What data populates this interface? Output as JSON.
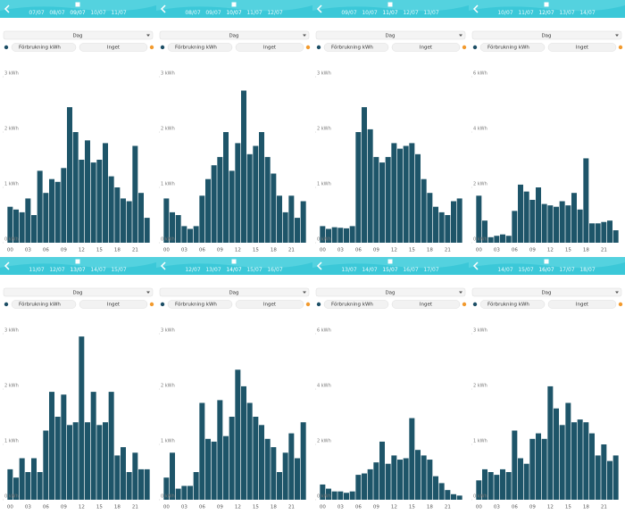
{
  "panels": [
    {
      "dates": [
        "07/07",
        "08/07",
        "09/07",
        "10/07",
        "11/07"
      ],
      "period": "Dag",
      "series_button": {
        "label": "Förbrukning kWh",
        "color": "#1d4f66"
      },
      "compare_button": {
        "label": "Inget",
        "color": "#f29a2e"
      },
      "chart_data": {
        "type": "bar",
        "color": "#1e5569",
        "categories": [
          "00",
          null,
          null,
          "03",
          null,
          null,
          "06",
          null,
          null,
          "09",
          null,
          null,
          "12",
          null,
          null,
          "15",
          null,
          null,
          "18",
          null,
          null,
          "21",
          null,
          null
        ],
        "values": [
          0.65,
          0.6,
          0.55,
          0.8,
          0.5,
          1.3,
          0.9,
          1.15,
          1.1,
          1.35,
          2.45,
          2.0,
          1.5,
          1.85,
          1.45,
          1.5,
          1.8,
          1.2,
          1.0,
          0.8,
          0.75,
          1.75,
          0.9,
          0.45
        ],
        "ylim": [
          0,
          3
        ],
        "yticks": [
          {
            "value": 0,
            "label": "0 kWh"
          },
          {
            "value": 1,
            "label": "1 kWh"
          },
          {
            "value": 2,
            "label": "2 kWh"
          },
          {
            "value": 3,
            "label": "3 kWh"
          }
        ]
      }
    },
    {
      "dates": [
        "08/07",
        "09/07",
        "10/07",
        "11/07",
        "12/07"
      ],
      "period": "Dag",
      "series_button": {
        "label": "Förbrukning kWh",
        "color": "#1d4f66"
      },
      "compare_button": {
        "label": "Inget",
        "color": "#f29a2e"
      },
      "chart_data": {
        "type": "bar",
        "color": "#1e5569",
        "categories": [
          "00",
          null,
          null,
          "03",
          null,
          null,
          "06",
          null,
          null,
          "09",
          null,
          null,
          "12",
          null,
          null,
          "15",
          null,
          null,
          "18",
          null,
          null,
          "21",
          null,
          null
        ],
        "values": [
          0.8,
          0.55,
          0.5,
          0.3,
          0.25,
          0.3,
          0.85,
          1.15,
          1.4,
          1.55,
          2.0,
          1.3,
          1.8,
          2.75,
          1.6,
          1.75,
          2.0,
          1.55,
          1.25,
          0.85,
          0.55,
          0.85,
          0.45,
          0.75
        ],
        "ylim": [
          0,
          3
        ],
        "yticks": [
          {
            "value": 0,
            "label": "0 kWh"
          },
          {
            "value": 1,
            "label": "1 kWh"
          },
          {
            "value": 2,
            "label": "2 kWh"
          },
          {
            "value": 3,
            "label": "3 kWh"
          }
        ]
      }
    },
    {
      "dates": [
        "09/07",
        "10/07",
        "11/07",
        "12/07",
        "13/07"
      ],
      "period": "Dag",
      "series_button": {
        "label": "Förbrukning kWh",
        "color": "#1d4f66"
      },
      "compare_button": {
        "label": "Inget",
        "color": "#f29a2e"
      },
      "chart_data": {
        "type": "bar",
        "color": "#1e5569",
        "categories": [
          "00",
          null,
          null,
          "03",
          null,
          null,
          "06",
          null,
          null,
          "09",
          null,
          null,
          "12",
          null,
          null,
          "15",
          null,
          null,
          "18",
          null,
          null,
          "21",
          null,
          null
        ],
        "values": [
          0.3,
          0.25,
          0.28,
          0.27,
          0.26,
          0.3,
          2.0,
          2.45,
          2.05,
          1.55,
          1.45,
          1.55,
          1.8,
          1.7,
          1.75,
          1.8,
          1.6,
          1.15,
          0.9,
          0.65,
          0.55,
          0.5,
          0.75,
          0.8
        ],
        "ylim": [
          0,
          3
        ],
        "yticks": [
          {
            "value": 0,
            "label": "0 kWh"
          },
          {
            "value": 1,
            "label": "1 kWh"
          },
          {
            "value": 2,
            "label": "2 kWh"
          },
          {
            "value": 3,
            "label": "3 kWh"
          }
        ]
      }
    },
    {
      "dates": [
        "10/07",
        "11/07",
        "12/07",
        "13/07",
        "14/07"
      ],
      "period": "Dag",
      "series_button": {
        "label": "Förbrukning kWh",
        "color": "#1d4f66"
      },
      "compare_button": {
        "label": "Inget",
        "color": "#f29a2e"
      },
      "chart_data": {
        "type": "bar",
        "color": "#1e5569",
        "categories": [
          "00",
          null,
          null,
          "03",
          null,
          null,
          "06",
          null,
          null,
          "09",
          null,
          null,
          "12",
          null,
          null,
          "15",
          null,
          null,
          "18",
          null,
          null,
          "21",
          null,
          null
        ],
        "values": [
          1.7,
          0.8,
          0.2,
          0.25,
          0.3,
          0.25,
          1.15,
          2.1,
          1.85,
          1.55,
          2.0,
          1.4,
          1.35,
          1.3,
          1.5,
          1.35,
          1.8,
          1.2,
          3.05,
          0.7,
          0.7,
          0.75,
          0.8,
          0.45
        ],
        "ylim": [
          0,
          6
        ],
        "yticks": [
          {
            "value": 0,
            "label": "0 kWh"
          },
          {
            "value": 2,
            "label": "2 kWh"
          },
          {
            "value": 4,
            "label": "4 kWh"
          },
          {
            "value": 6,
            "label": "6 kWh"
          }
        ]
      }
    },
    {
      "dates": [
        "11/07",
        "12/07",
        "13/07",
        "14/07",
        "15/07"
      ],
      "period": "Dag",
      "series_button": {
        "label": "Förbrukning kWh",
        "color": "#1d4f66"
      },
      "compare_button": {
        "label": "Inget",
        "color": "#f29a2e"
      },
      "chart_data": {
        "type": "bar",
        "color": "#1e5569",
        "categories": [
          "00",
          null,
          null,
          "03",
          null,
          null,
          "06",
          null,
          null,
          "09",
          null,
          null,
          "12",
          null,
          null,
          "15",
          null,
          null,
          "18",
          null,
          null,
          "21",
          null,
          null
        ],
        "values": [
          0.55,
          0.4,
          0.75,
          0.5,
          0.75,
          0.5,
          1.25,
          1.95,
          1.5,
          1.9,
          1.35,
          1.4,
          2.95,
          1.4,
          1.95,
          1.35,
          1.4,
          1.95,
          0.8,
          0.95,
          0.5,
          0.85,
          0.55,
          0.55
        ],
        "ylim": [
          0,
          3
        ],
        "yticks": [
          {
            "value": 0,
            "label": "0 kWh"
          },
          {
            "value": 1,
            "label": "1 kWh"
          },
          {
            "value": 2,
            "label": "2 kWh"
          },
          {
            "value": 3,
            "label": "3 kWh"
          }
        ]
      }
    },
    {
      "dates": [
        "12/07",
        "13/07",
        "14/07",
        "15/07",
        "16/07"
      ],
      "period": "Dag",
      "series_button": {
        "label": "Förbrukning kWh",
        "color": "#1d4f66"
      },
      "compare_button": {
        "label": "Inget",
        "color": "#f29a2e"
      },
      "chart_data": {
        "type": "bar",
        "color": "#1e5569",
        "categories": [
          "00",
          null,
          null,
          "03",
          null,
          null,
          "06",
          null,
          null,
          "09",
          null,
          null,
          "12",
          null,
          null,
          "15",
          null,
          null,
          "18",
          null,
          null,
          "21",
          null,
          null
        ],
        "values": [
          0.4,
          0.85,
          0.2,
          0.25,
          0.25,
          0.5,
          1.75,
          1.1,
          1.05,
          1.8,
          1.15,
          1.5,
          2.35,
          2.05,
          1.75,
          1.5,
          1.35,
          1.1,
          0.95,
          0.5,
          0.85,
          1.2,
          0.75,
          1.4
        ],
        "ylim": [
          0,
          3
        ],
        "yticks": [
          {
            "value": 0,
            "label": "0 kWh"
          },
          {
            "value": 1,
            "label": "1 kWh"
          },
          {
            "value": 2,
            "label": "2 kWh"
          },
          {
            "value": 3,
            "label": "3 kWh"
          }
        ]
      }
    },
    {
      "dates": [
        "13/07",
        "14/07",
        "15/07",
        "16/07",
        "17/07"
      ],
      "period": "Dag",
      "series_button": {
        "label": "Förbrukning kWh",
        "color": "#1d4f66"
      },
      "compare_button": {
        "label": "Inget",
        "color": "#f29a2e"
      },
      "chart_data": {
        "type": "bar",
        "color": "#1e5569",
        "categories": [
          "00",
          null,
          null,
          "03",
          null,
          null,
          "06",
          null,
          null,
          "09",
          null,
          null,
          "12",
          null,
          null,
          "15",
          null,
          null,
          "18",
          null,
          null,
          "21",
          null,
          null
        ],
        "values": [
          0.55,
          0.4,
          0.3,
          0.3,
          0.25,
          0.3,
          0.9,
          0.95,
          1.1,
          1.35,
          2.1,
          1.3,
          1.6,
          1.45,
          1.5,
          2.95,
          1.8,
          1.6,
          1.45,
          0.85,
          0.6,
          0.35,
          0.2,
          0.15
        ],
        "ylim": [
          0,
          6
        ],
        "yticks": [
          {
            "value": 0,
            "label": "0 kWh"
          },
          {
            "value": 2,
            "label": "2 kWh"
          },
          {
            "value": 4,
            "label": "4 kWh"
          },
          {
            "value": 6,
            "label": "6 kWh"
          }
        ]
      }
    },
    {
      "dates": [
        "14/07",
        "15/07",
        "16/07",
        "17/07",
        "18/07"
      ],
      "period": "Dag",
      "series_button": {
        "label": "Förbrukning kWh",
        "color": "#1d4f66"
      },
      "compare_button": {
        "label": "Inget",
        "color": "#f29a2e"
      },
      "chart_data": {
        "type": "bar",
        "color": "#1e5569",
        "categories": [
          "00",
          null,
          null,
          "03",
          null,
          null,
          "06",
          null,
          null,
          "09",
          null,
          null,
          "12",
          null,
          null,
          "15",
          null,
          null,
          "18",
          null,
          null,
          "21",
          null,
          null
        ],
        "values": [
          0.35,
          0.55,
          0.5,
          0.45,
          0.55,
          0.5,
          1.25,
          0.75,
          0.65,
          1.1,
          1.2,
          1.1,
          2.05,
          1.65,
          1.35,
          1.75,
          1.4,
          1.45,
          1.4,
          1.2,
          0.8,
          1.0,
          0.7,
          0.8
        ],
        "ylim": [
          0,
          3
        ],
        "yticks": [
          {
            "value": 0,
            "label": "0 kWh"
          },
          {
            "value": 1,
            "label": "1 kWh"
          },
          {
            "value": 2,
            "label": "2 kWh"
          },
          {
            "value": 3,
            "label": "3 kWh"
          }
        ]
      }
    }
  ]
}
